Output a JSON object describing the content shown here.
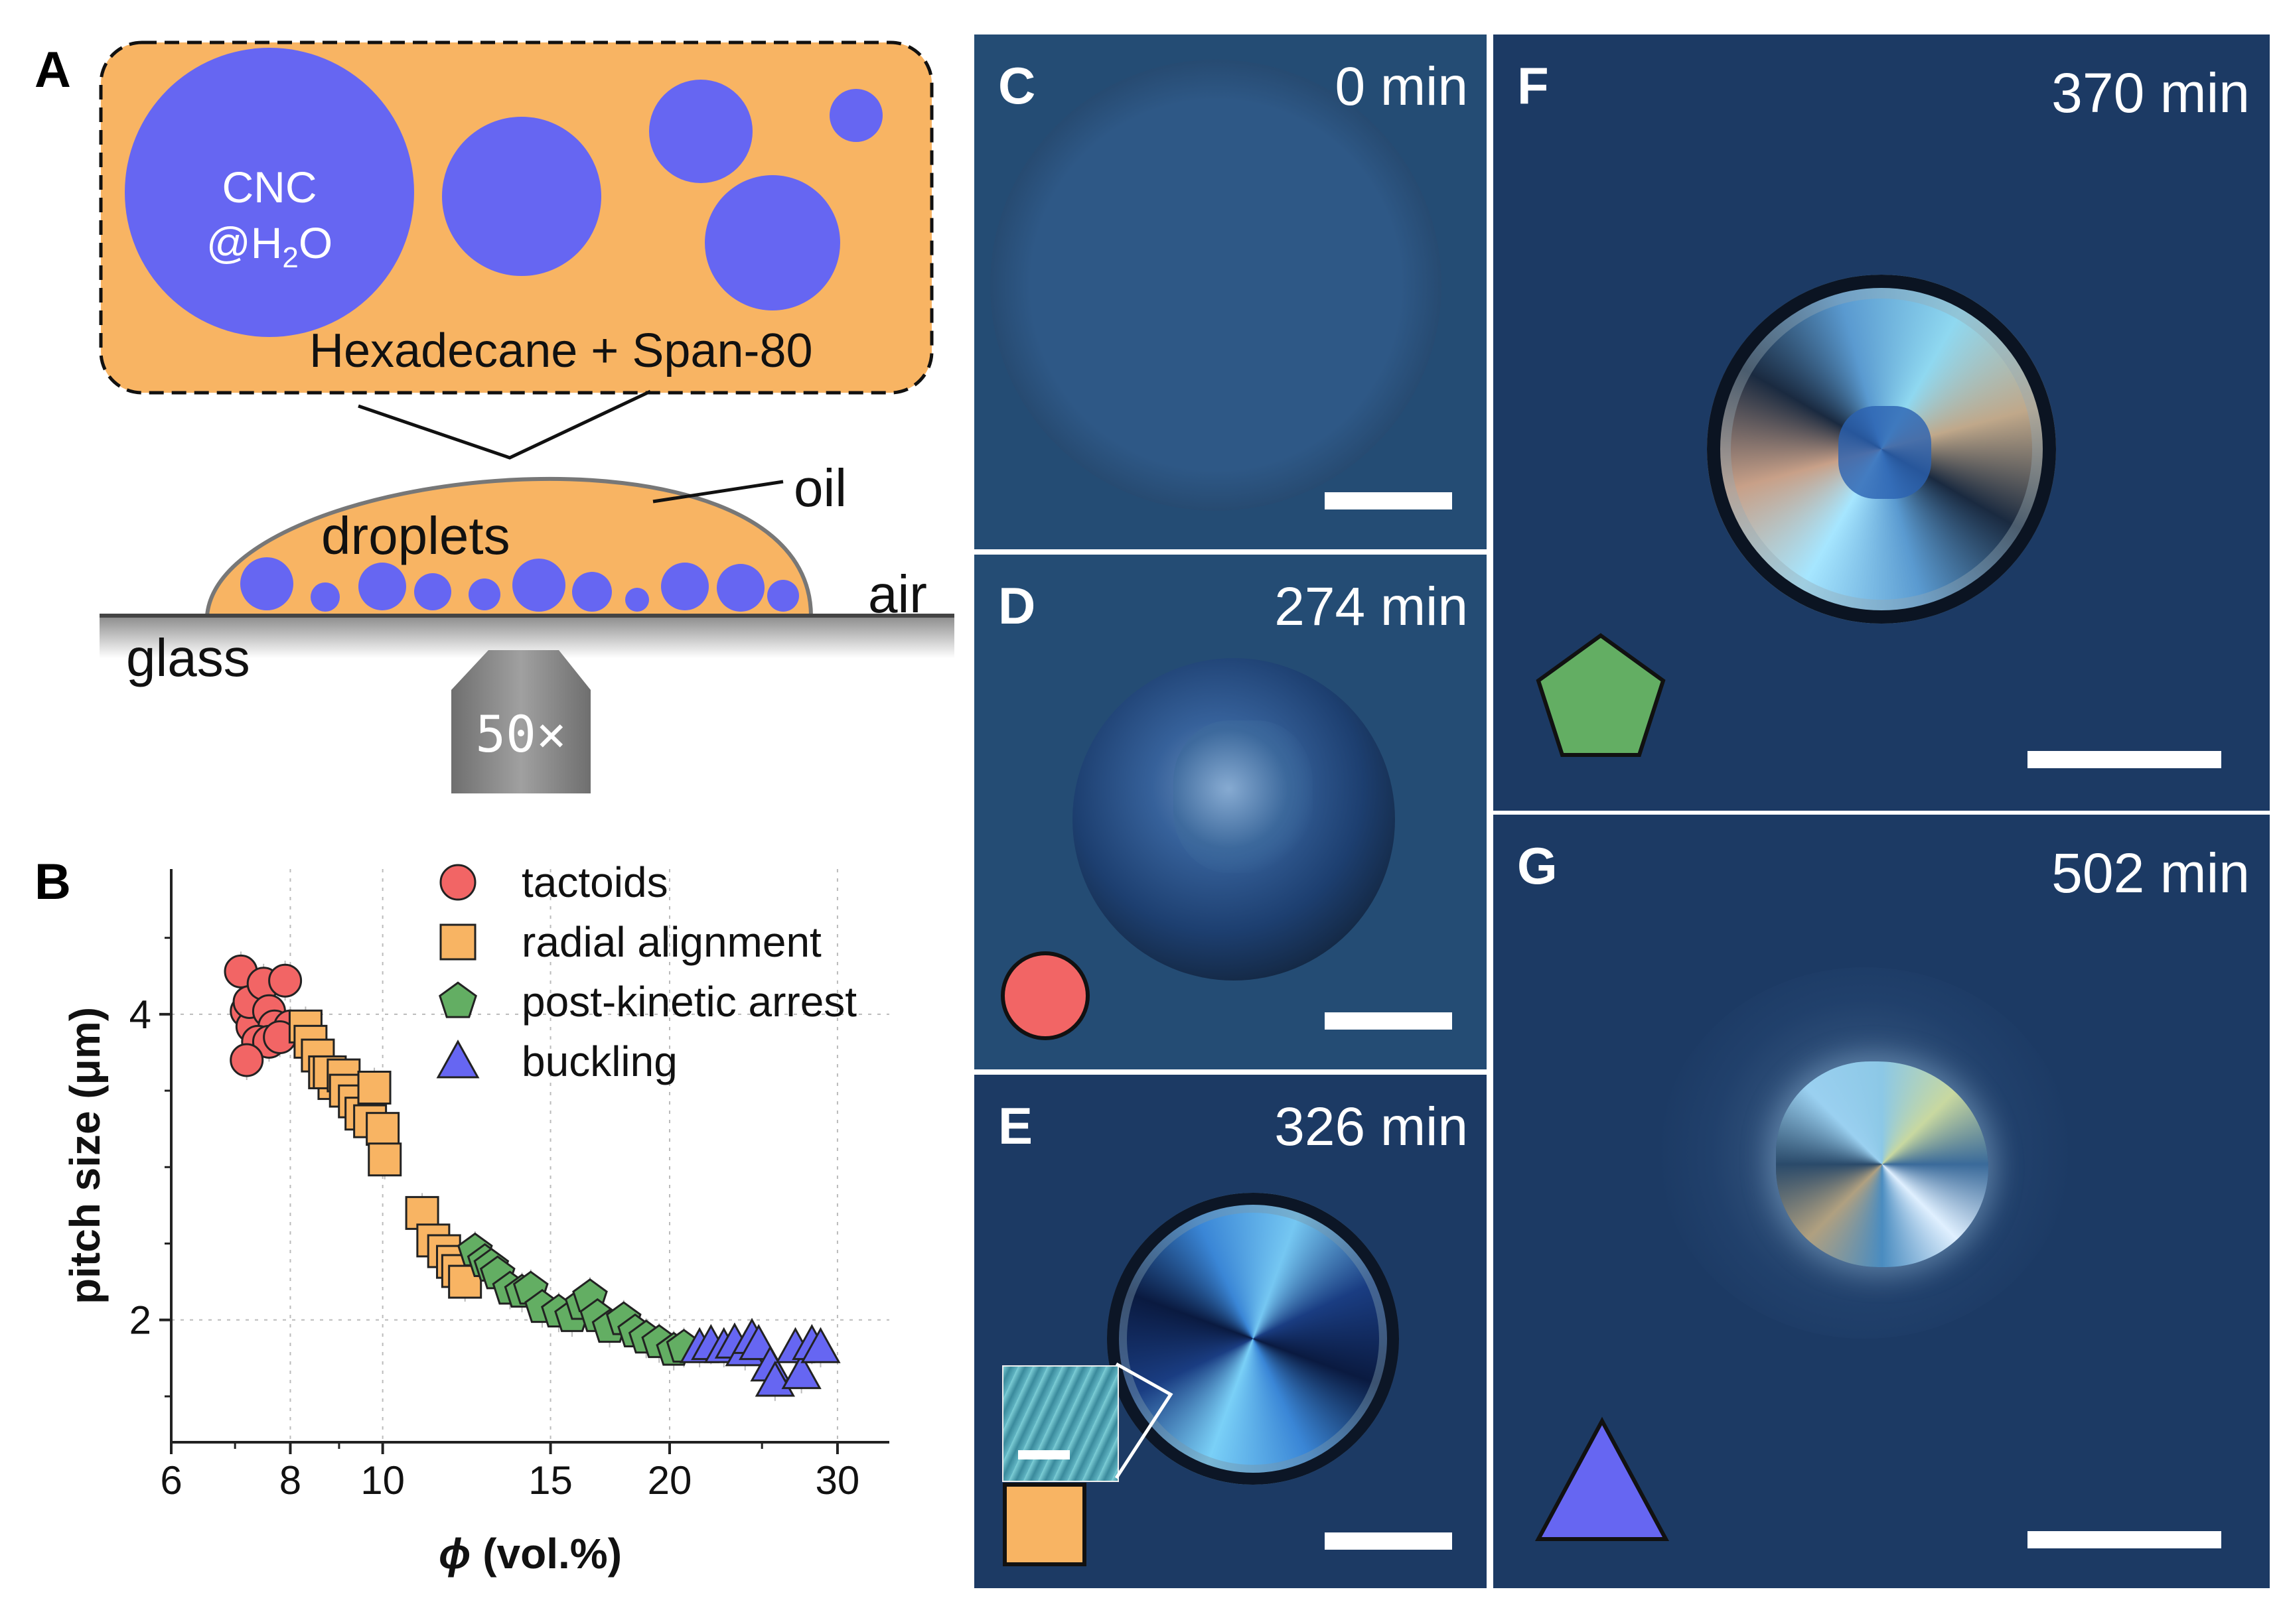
{
  "panel_a": {
    "label": "A",
    "inset_drop_top": "CNC",
    "inset_drop_bottom_pre": "@H",
    "inset_drop_sub": "2",
    "inset_drop_bottom_post": "O",
    "inset_medium": "Hexadecane + Span-80",
    "oil": "oil",
    "droplets": "droplets",
    "air": "air",
    "glass": "glass",
    "objective": "50×",
    "colors": {
      "oil": "#F8B463",
      "droplet": "#6666F2"
    }
  },
  "panel_b": {
    "label": "B",
    "chart_data": {
      "type": "scatter",
      "xlabel_symbol": "ϕ",
      "xlabel_rest": " (vol.%)",
      "ylabel": "pitch size (μm)",
      "x_scale": "log",
      "xlim": [
        6,
        34
      ],
      "ylim": [
        1.2,
        4.95
      ],
      "x_ticks": [
        6,
        8,
        10,
        15,
        20,
        30
      ],
      "y_ticks": [
        2,
        4
      ],
      "grid": true,
      "legend_position": "top-right",
      "series": [
        {
          "name": "tactoids",
          "marker": "circle",
          "color": "#F26565",
          "points": [
            [
              7.1,
              4.28
            ],
            [
              7.2,
              4.02
            ],
            [
              7.3,
              3.92
            ],
            [
              7.25,
              4.08
            ],
            [
              7.5,
              4.2
            ],
            [
              7.6,
              4.02
            ],
            [
              7.7,
              3.92
            ],
            [
              7.4,
              3.82
            ],
            [
              7.9,
              4.22
            ],
            [
              7.6,
              3.82
            ],
            [
              7.2,
              3.7
            ],
            [
              8.0,
              3.92
            ],
            [
              7.8,
              3.85
            ]
          ]
        },
        {
          "name": "radial alignment",
          "marker": "square",
          "color": "#F8B463",
          "points": [
            [
              8.3,
              3.92
            ],
            [
              8.4,
              3.82
            ],
            [
              8.55,
              3.73
            ],
            [
              8.7,
              3.62
            ],
            [
              8.9,
              3.55
            ],
            [
              8.8,
              3.62
            ],
            [
              9.1,
              3.6
            ],
            [
              9.15,
              3.5
            ],
            [
              9.35,
              3.43
            ],
            [
              9.5,
              3.35
            ],
            [
              9.7,
              3.3
            ],
            [
              9.8,
              3.52
            ],
            [
              10.0,
              3.25
            ],
            [
              10.05,
              3.05
            ],
            [
              11.0,
              2.7
            ],
            [
              11.3,
              2.52
            ],
            [
              11.6,
              2.45
            ],
            [
              11.85,
              2.38
            ],
            [
              12.0,
              2.32
            ],
            [
              12.2,
              2.25
            ]
          ]
        },
        {
          "name": "post-kinetic arrest",
          "marker": "pentagon",
          "color": "#63AE63",
          "points": [
            [
              12.5,
              2.45
            ],
            [
              12.8,
              2.38
            ],
            [
              13.0,
              2.35
            ],
            [
              13.2,
              2.3
            ],
            [
              13.6,
              2.2
            ],
            [
              14.0,
              2.18
            ],
            [
              14.3,
              2.2
            ],
            [
              14.7,
              2.08
            ],
            [
              15.3,
              2.05
            ],
            [
              15.8,
              2.02
            ],
            [
              16.2,
              2.1
            ],
            [
              16.5,
              2.15
            ],
            [
              16.8,
              2.02
            ],
            [
              17.3,
              1.95
            ],
            [
              17.9,
              2.0
            ],
            [
              18.4,
              1.92
            ],
            [
              18.9,
              1.88
            ],
            [
              19.5,
              1.85
            ],
            [
              20.2,
              1.8
            ],
            [
              20.7,
              1.82
            ]
          ]
        },
        {
          "name": "buckling",
          "marker": "triangle",
          "color": "#6666F2",
          "points": [
            [
              21.5,
              1.82
            ],
            [
              22.1,
              1.84
            ],
            [
              22.8,
              1.82
            ],
            [
              23.4,
              1.85
            ],
            [
              24.0,
              1.8
            ],
            [
              24.4,
              1.88
            ],
            [
              24.8,
              1.84
            ],
            [
              25.5,
              1.7
            ],
            [
              25.8,
              1.6
            ],
            [
              27.1,
              1.82
            ],
            [
              27.5,
              1.65
            ],
            [
              28.2,
              1.84
            ],
            [
              28.8,
              1.82
            ]
          ]
        }
      ]
    }
  },
  "micrographs": [
    {
      "label": "C",
      "time": "0 min"
    },
    {
      "label": "D",
      "time": "274 min"
    },
    {
      "label": "E",
      "time": "326 min"
    },
    {
      "label": "F",
      "time": "370 min"
    },
    {
      "label": "G",
      "time": "502 min"
    }
  ]
}
